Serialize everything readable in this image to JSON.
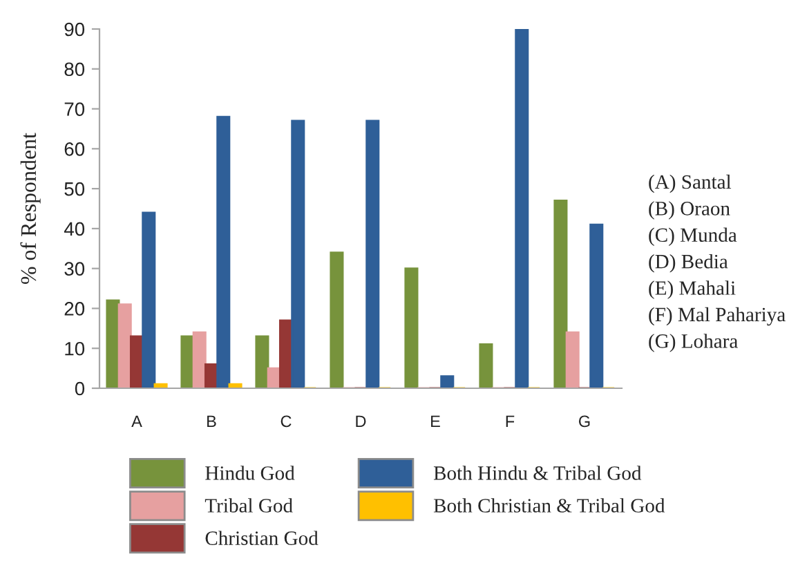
{
  "chart_data": {
    "type": "bar",
    "ylabel": "% of Respondent",
    "categories": [
      "A",
      "B",
      "C",
      "D",
      "E",
      "F",
      "G"
    ],
    "series": [
      {
        "name": "Hindu God",
        "color": "#77933c",
        "values": [
          22,
          13,
          13,
          34,
          30,
          11,
          47
        ]
      },
      {
        "name": "Tribal God",
        "color": "#e6a0a0",
        "values": [
          21,
          14,
          5,
          0,
          0,
          0,
          14
        ]
      },
      {
        "name": "Christian God",
        "color": "#953735",
        "values": [
          13,
          6,
          17,
          0,
          0,
          0,
          0
        ]
      },
      {
        "name": "Both Hindu & Tribal God",
        "color": "#2f5f98",
        "values": [
          44,
          68,
          67,
          67,
          3,
          90,
          41
        ]
      },
      {
        "name": "Both Christian & Tribal God",
        "color": "#ffc000",
        "values": [
          1,
          1,
          0,
          0,
          0,
          0,
          0
        ]
      }
    ],
    "ylim": [
      0,
      90
    ],
    "yticks": [
      0,
      10,
      20,
      30,
      40,
      50,
      60,
      70,
      80,
      90
    ],
    "legend": "bottom",
    "annotations": [
      "(A) Santal",
      "(B) Oraon",
      "(C) Munda",
      "(D) Bedia",
      "(E) Mahali",
      "(F) Mal Pahariya",
      "(G) Lohara"
    ]
  }
}
